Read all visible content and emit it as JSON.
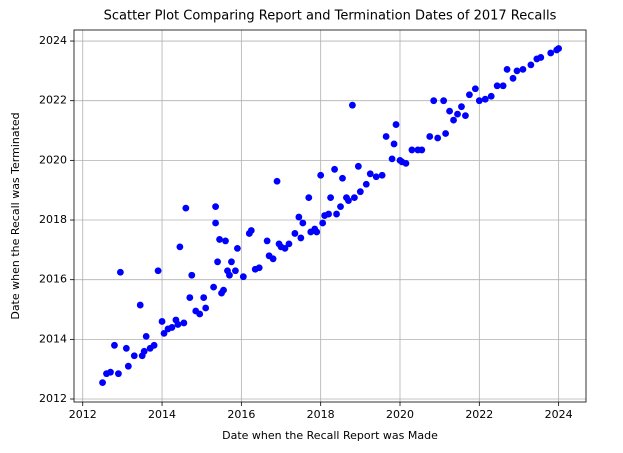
{
  "chart_data": {
    "type": "scatter",
    "title": "Scatter Plot Comparing Report and Termination Dates of 2017 Recalls",
    "x_label": "Date when the Recall Report was Made",
    "y_label": "Date when the Recall was Terminated",
    "color": "#0000ff",
    "grid": true,
    "xlim": [
      2011.78,
      2024.69
    ],
    "ylim": [
      2011.9,
      2024.37
    ],
    "xticks": [
      2012,
      2014,
      2016,
      2018,
      2020,
      2022,
      2024
    ],
    "yticks": [
      2012,
      2014,
      2016,
      2018,
      2020,
      2022,
      2024
    ],
    "x": [
      2012.5,
      2012.6,
      2012.7,
      2012.8,
      2012.9,
      2012.95,
      2013.1,
      2013.15,
      2013.3,
      2013.45,
      2013.5,
      2013.55,
      2013.6,
      2013.7,
      2013.8,
      2013.9,
      2014.0,
      2014.05,
      2014.15,
      2014.25,
      2014.35,
      2014.4,
      2014.45,
      2014.55,
      2014.6,
      2014.7,
      2014.75,
      2014.85,
      2014.95,
      2015.05,
      2015.1,
      2015.3,
      2015.35,
      2015.35,
      2015.4,
      2015.45,
      2015.5,
      2015.55,
      2015.6,
      2015.65,
      2015.7,
      2015.75,
      2015.85,
      2015.9,
      2016.05,
      2016.2,
      2016.25,
      2016.35,
      2016.45,
      2016.65,
      2016.7,
      2016.8,
      2016.9,
      2016.95,
      2017.0,
      2017.1,
      2017.2,
      2017.35,
      2017.45,
      2017.5,
      2017.55,
      2017.7,
      2017.75,
      2017.85,
      2017.9,
      2018.0,
      2018.05,
      2018.1,
      2018.2,
      2018.25,
      2018.35,
      2018.4,
      2018.5,
      2018.55,
      2018.65,
      2018.7,
      2018.8,
      2018.85,
      2018.95,
      2019.0,
      2019.15,
      2019.25,
      2019.4,
      2019.55,
      2019.65,
      2019.8,
      2019.85,
      2019.9,
      2020.0,
      2020.05,
      2020.15,
      2020.3,
      2020.45,
      2020.55,
      2020.75,
      2020.85,
      2020.95,
      2021.1,
      2021.15,
      2021.25,
      2021.35,
      2021.45,
      2021.55,
      2021.65,
      2021.75,
      2021.9,
      2022.0,
      2022.15,
      2022.3,
      2022.45,
      2022.6,
      2022.7,
      2022.85,
      2022.95,
      2023.1,
      2023.3,
      2023.45,
      2023.55,
      2023.8,
      2023.95,
      2024.0
    ],
    "y": [
      2012.55,
      2012.85,
      2012.9,
      2013.8,
      2012.85,
      2016.25,
      2013.7,
      2013.1,
      2013.45,
      2015.15,
      2013.45,
      2013.6,
      2014.1,
      2013.7,
      2013.8,
      2016.3,
      2014.6,
      2014.2,
      2014.35,
      2014.4,
      2014.65,
      2014.5,
      2017.1,
      2014.55,
      2018.4,
      2015.4,
      2016.15,
      2014.95,
      2014.85,
      2015.4,
      2015.05,
      2015.75,
      2018.45,
      2017.9,
      2016.6,
      2017.35,
      2015.55,
      2015.65,
      2017.3,
      2016.3,
      2016.15,
      2016.6,
      2016.3,
      2017.05,
      2016.1,
      2017.55,
      2017.65,
      2016.35,
      2016.4,
      2017.3,
      2016.8,
      2016.7,
      2019.3,
      2017.2,
      2017.1,
      2017.05,
      2017.2,
      2017.55,
      2018.1,
      2017.4,
      2017.9,
      2018.75,
      2017.6,
      2017.7,
      2017.6,
      2019.5,
      2017.9,
      2018.15,
      2018.2,
      2018.75,
      2019.7,
      2018.2,
      2018.45,
      2019.4,
      2018.75,
      2018.65,
      2021.85,
      2018.75,
      2019.8,
      2018.95,
      2019.2,
      2019.55,
      2019.45,
      2019.5,
      2020.8,
      2020.05,
      2020.55,
      2021.2,
      2020.0,
      2019.95,
      2019.9,
      2020.35,
      2020.35,
      2020.35,
      2020.8,
      2022.0,
      2020.75,
      2022.0,
      2020.9,
      2021.65,
      2021.35,
      2021.55,
      2021.8,
      2021.5,
      2022.2,
      2022.4,
      2022.0,
      2022.05,
      2022.15,
      2022.5,
      2022.5,
      2023.05,
      2022.75,
      2023.0,
      2023.05,
      2023.2,
      2023.4,
      2023.45,
      2023.6,
      2023.7,
      2023.75
    ]
  }
}
